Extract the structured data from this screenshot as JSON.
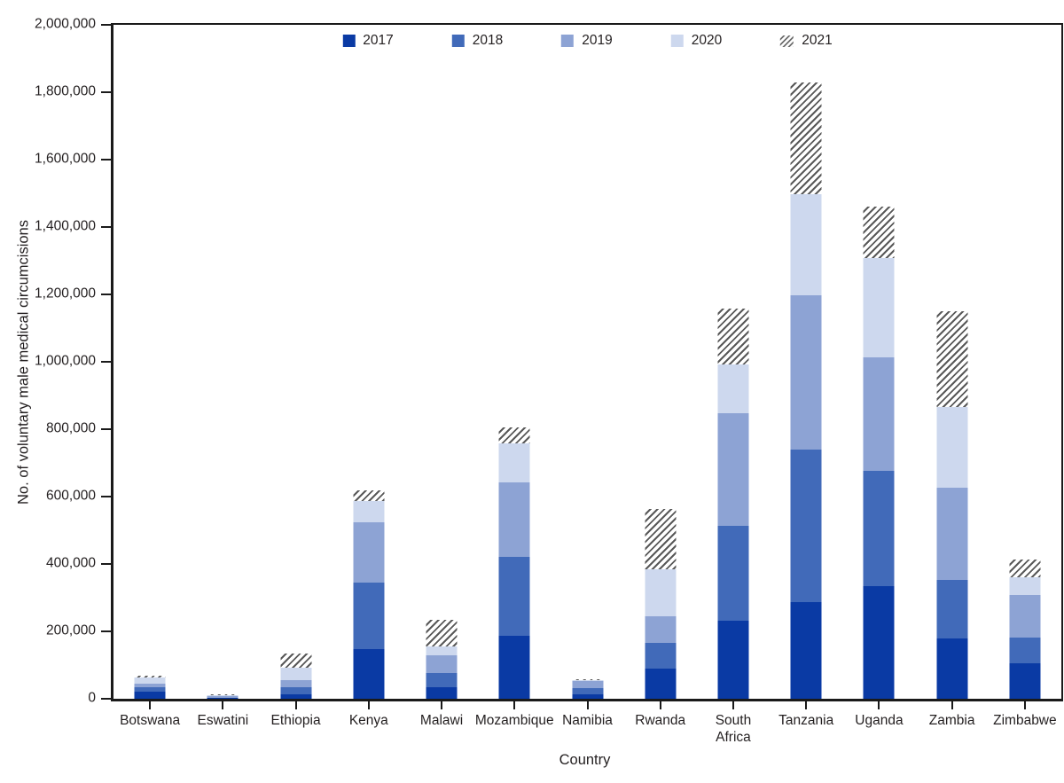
{
  "figure": {
    "y_axis_label": "No. of voluntary male medical circumcisions",
    "x_axis_label": "Country"
  },
  "chart_data": {
    "type": "bar",
    "stacked": true,
    "title": "",
    "xlabel": "Country",
    "ylabel": "No. of voluntary male medical circumcisions",
    "ylim": [
      0,
      2000000
    ],
    "y_tick_interval": 200000,
    "y_tick_labels": [
      "0",
      "200,000",
      "400,000",
      "600,000",
      "800,000",
      "1,000,000",
      "1,200,000",
      "1,400,000",
      "1,600,000",
      "1,800,000",
      "2,000,000"
    ],
    "grid": false,
    "legend_position": "top-center",
    "categories": [
      "Botswana",
      "Eswatini",
      "Ethiopia",
      "Kenya",
      "Malawi",
      "Mozambique",
      "Namibia",
      "Rwanda",
      "South Africa",
      "Tanzania",
      "Uganda",
      "Zambia",
      "Zimbabwe"
    ],
    "category_display_labels": [
      "Botswana",
      "Eswatini",
      "Ethiopia",
      "Kenya",
      "Malawi",
      "Mozambique",
      "Namibia",
      "Rwanda",
      "South\nAfrica",
      "Tanzania",
      "Uganda",
      "Zambia",
      "Zimbabwe"
    ],
    "series": [
      {
        "name": "2017",
        "color": "#0a3aa4",
        "hatch": false,
        "values": [
          21000,
          2000,
          13000,
          148000,
          34000,
          187000,
          13000,
          90000,
          232000,
          288000,
          333000,
          180000,
          105000
        ]
      },
      {
        "name": "2018",
        "color": "#416ab9",
        "hatch": false,
        "values": [
          12000,
          2000,
          21000,
          196000,
          42000,
          234000,
          18000,
          76000,
          280000,
          452000,
          344000,
          174000,
          76000
        ]
      },
      {
        "name": "2019",
        "color": "#8da3d4",
        "hatch": false,
        "values": [
          13000,
          3000,
          21000,
          179000,
          53000,
          222000,
          21000,
          79000,
          335000,
          458000,
          335000,
          272000,
          127000
        ]
      },
      {
        "name": "2020",
        "color": "#cdd8ee",
        "hatch": false,
        "values": [
          16000,
          3000,
          37000,
          63000,
          27000,
          114000,
          3000,
          139000,
          145000,
          300000,
          296000,
          240000,
          52000
        ]
      },
      {
        "name": "2021",
        "color": "#595959",
        "hatch": true,
        "values": [
          7000,
          3000,
          43000,
          33000,
          79000,
          48000,
          2000,
          180000,
          165000,
          330000,
          153000,
          285000,
          53000
        ]
      }
    ],
    "hatch_background": "#ffffff",
    "axis_color": "#1a1a1a",
    "text_color": "#231f20"
  }
}
